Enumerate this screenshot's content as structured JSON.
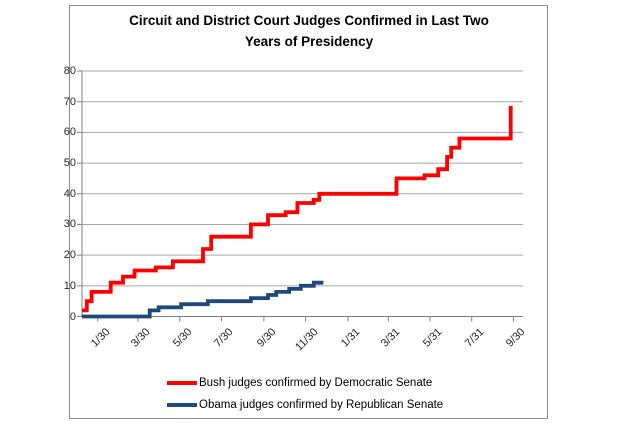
{
  "title": {
    "line1": "Circuit and District Court Judges Confirmed in Last Two",
    "line2": "Years of Presidency"
  },
  "chart_data": {
    "type": "line",
    "subtype": "step-cumulative",
    "title": "Circuit and District Court Judges Confirmed in Last Two Years of Presidency",
    "xlabel": "",
    "ylabel": "",
    "ylim": [
      0,
      80
    ],
    "yticks": [
      0,
      10,
      20,
      30,
      40,
      50,
      60,
      70,
      80
    ],
    "grid": true,
    "legend_position": "bottom",
    "x_axis": {
      "unit": "days_from_start_of_first_year",
      "t_min": 6,
      "t_max": 651,
      "ticks": [
        {
          "t": 29,
          "label": "1/30"
        },
        {
          "t": 88,
          "label": "3/30"
        },
        {
          "t": 149,
          "label": "5/30"
        },
        {
          "t": 210,
          "label": "7/30"
        },
        {
          "t": 272,
          "label": "9/30"
        },
        {
          "t": 333,
          "label": "11/30"
        },
        {
          "t": 395,
          "label": "1/31"
        },
        {
          "t": 454,
          "label": "3/31"
        },
        {
          "t": 515,
          "label": "5/31"
        },
        {
          "t": 576,
          "label": "7/31"
        },
        {
          "t": 637,
          "label": "9/30"
        }
      ]
    },
    "series": [
      {
        "name": "Bush judges confirmed by Democratic Senate",
        "color": "#FF0000",
        "points": [
          [
            6,
            2
          ],
          [
            13,
            5
          ],
          [
            20,
            8
          ],
          [
            48,
            11
          ],
          [
            66,
            13
          ],
          [
            83,
            15
          ],
          [
            114,
            16
          ],
          [
            139,
            18
          ],
          [
            183,
            22
          ],
          [
            195,
            26
          ],
          [
            253,
            30
          ],
          [
            278,
            33
          ],
          [
            304,
            34
          ],
          [
            321,
            37
          ],
          [
            345,
            38
          ],
          [
            353,
            40
          ],
          [
            466,
            45
          ],
          [
            507,
            46
          ],
          [
            527,
            48
          ],
          [
            540,
            52
          ],
          [
            546,
            55
          ],
          [
            558,
            58
          ],
          [
            633,
            68
          ],
          [
            636,
            68
          ]
        ]
      },
      {
        "name": "Obama judges confirmed by Republican Senate",
        "color": "#1F497D",
        "points": [
          [
            6,
            0
          ],
          [
            105,
            2
          ],
          [
            118,
            3
          ],
          [
            151,
            4
          ],
          [
            190,
            5
          ],
          [
            253,
            6
          ],
          [
            278,
            7
          ],
          [
            290,
            8
          ],
          [
            309,
            9
          ],
          [
            326,
            10
          ],
          [
            345,
            11
          ],
          [
            359,
            11
          ]
        ]
      }
    ]
  }
}
